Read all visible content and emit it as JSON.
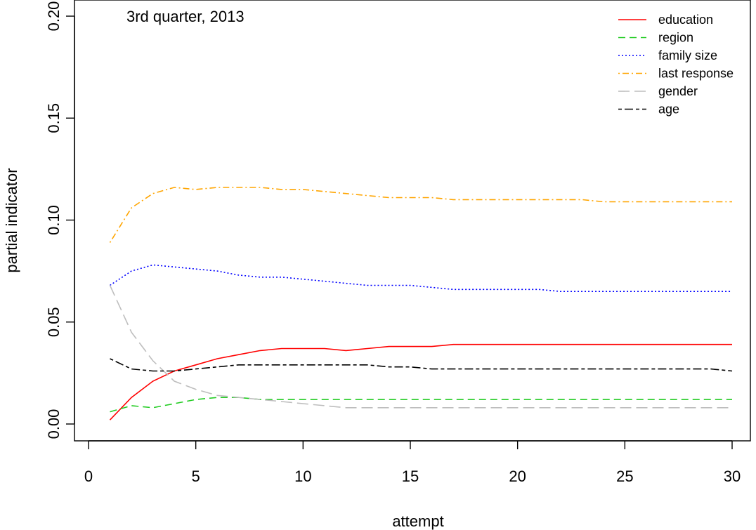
{
  "chart_data": {
    "type": "line",
    "annotation": "3rd quarter, 2013",
    "xlabel": "attempt",
    "ylabel": "partial indicator",
    "xlim": [
      0,
      31
    ],
    "ylim": [
      -0.008,
      0.2
    ],
    "x_ticks": [
      0,
      5,
      10,
      15,
      20,
      25,
      30
    ],
    "y_ticks": [
      0.0,
      0.05,
      0.1,
      0.15,
      0.2
    ],
    "x_tick_labels": [
      "0",
      "5",
      "10",
      "15",
      "20",
      "25",
      "30"
    ],
    "y_tick_labels": [
      "0.00",
      "0.05",
      "0.10",
      "0.15",
      "0.20"
    ],
    "grid": false,
    "legend_position": "top-right",
    "x": [
      1,
      2,
      3,
      4,
      5,
      6,
      7,
      8,
      9,
      10,
      11,
      12,
      13,
      14,
      15,
      16,
      17,
      18,
      19,
      20,
      21,
      22,
      23,
      24,
      25,
      26,
      27,
      28,
      29,
      30
    ],
    "series": [
      {
        "name": "education",
        "color": "#ff0000",
        "dash": "solid",
        "values": [
          0.002,
          0.013,
          0.021,
          0.026,
          0.029,
          0.032,
          0.034,
          0.036,
          0.037,
          0.037,
          0.037,
          0.036,
          0.037,
          0.038,
          0.038,
          0.038,
          0.039,
          0.039,
          0.039,
          0.039,
          0.039,
          0.039,
          0.039,
          0.039,
          0.039,
          0.039,
          0.039,
          0.039,
          0.039,
          0.039
        ]
      },
      {
        "name": "region",
        "color": "#22cc22",
        "dash": "dashed",
        "values": [
          0.006,
          0.009,
          0.008,
          0.01,
          0.012,
          0.013,
          0.013,
          0.012,
          0.012,
          0.012,
          0.012,
          0.012,
          0.012,
          0.012,
          0.012,
          0.012,
          0.012,
          0.012,
          0.012,
          0.012,
          0.012,
          0.012,
          0.012,
          0.012,
          0.012,
          0.012,
          0.012,
          0.012,
          0.012,
          0.012
        ]
      },
      {
        "name": "family size",
        "color": "#0000ff",
        "dash": "dotted",
        "values": [
          0.068,
          0.075,
          0.078,
          0.077,
          0.076,
          0.075,
          0.073,
          0.072,
          0.072,
          0.071,
          0.07,
          0.069,
          0.068,
          0.068,
          0.068,
          0.067,
          0.066,
          0.066,
          0.066,
          0.066,
          0.066,
          0.065,
          0.065,
          0.065,
          0.065,
          0.065,
          0.065,
          0.065,
          0.065,
          0.065
        ]
      },
      {
        "name": "last response",
        "color": "#ffa500",
        "dash": "dotdash",
        "values": [
          0.089,
          0.106,
          0.113,
          0.116,
          0.115,
          0.116,
          0.116,
          0.116,
          0.115,
          0.115,
          0.114,
          0.113,
          0.112,
          0.111,
          0.111,
          0.111,
          0.11,
          0.11,
          0.11,
          0.11,
          0.11,
          0.11,
          0.11,
          0.109,
          0.109,
          0.109,
          0.109,
          0.109,
          0.109,
          0.109
        ]
      },
      {
        "name": "gender",
        "color": "#bebebe",
        "dash": "longdash",
        "values": [
          0.068,
          0.045,
          0.031,
          0.021,
          0.017,
          0.014,
          0.013,
          0.012,
          0.011,
          0.01,
          0.009,
          0.008,
          0.008,
          0.008,
          0.008,
          0.008,
          0.008,
          0.008,
          0.008,
          0.008,
          0.008,
          0.008,
          0.008,
          0.008,
          0.008,
          0.008,
          0.008,
          0.008,
          0.008,
          0.008
        ]
      },
      {
        "name": "age",
        "color": "#000000",
        "dash": "twodash",
        "values": [
          0.032,
          0.027,
          0.026,
          0.026,
          0.027,
          0.028,
          0.029,
          0.029,
          0.029,
          0.029,
          0.029,
          0.029,
          0.029,
          0.028,
          0.028,
          0.027,
          0.027,
          0.027,
          0.027,
          0.027,
          0.027,
          0.027,
          0.027,
          0.027,
          0.027,
          0.027,
          0.027,
          0.027,
          0.027,
          0.026
        ]
      }
    ]
  }
}
